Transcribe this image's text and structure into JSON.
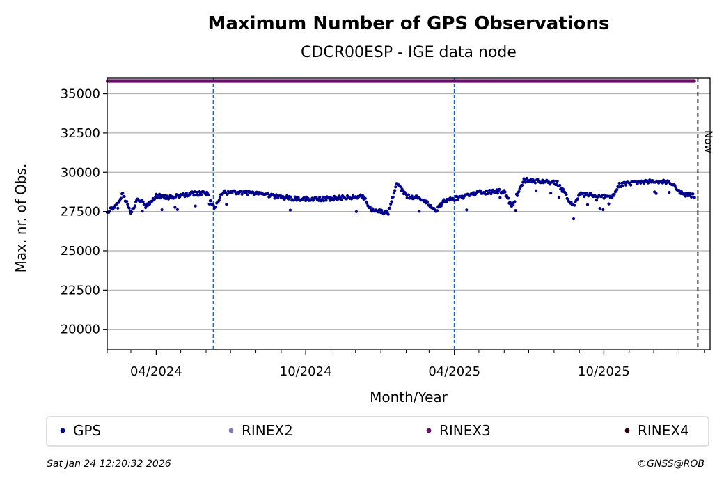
{
  "chart_data": {
    "type": "scatter",
    "title": "Maximum Number of GPS Observations",
    "subtitle": "CDCR00ESP - IGE data node",
    "xlabel": "Month/Year",
    "ylabel": "Max. nr. of Obs.",
    "x_tick_labels": [
      "04/2024",
      "10/2024",
      "04/2025",
      "10/2025"
    ],
    "y_ticks": [
      20000,
      22500,
      25000,
      27500,
      30000,
      32500,
      35000
    ],
    "ylim": [
      18700,
      36000
    ],
    "xlim": [
      "2024-02-01",
      "2026-02-08"
    ],
    "grid": "horizontal",
    "legend_position": "bottom",
    "colors": {
      "GPS": "#00008b",
      "RINEX2": "#7b7bb8",
      "RINEX3": "#6a0a6a",
      "RINEX4": "#2a0010",
      "vline": "#1f5fbf",
      "now_line": "#000000"
    },
    "series": [
      {
        "name": "GPS",
        "trend": [
          [
            "2024-02-01",
            27500
          ],
          [
            "2024-02-10",
            27800
          ],
          [
            "2024-02-20",
            28600
          ],
          [
            "2024-03-01",
            27500
          ],
          [
            "2024-03-10",
            28300
          ],
          [
            "2024-03-20",
            27800
          ],
          [
            "2024-04-01",
            28500
          ],
          [
            "2024-04-20",
            28400
          ],
          [
            "2024-05-10",
            28600
          ],
          [
            "2024-06-01",
            28700
          ],
          [
            "2024-06-12",
            27700
          ],
          [
            "2024-06-20",
            28700
          ],
          [
            "2024-07-20",
            28700
          ],
          [
            "2024-08-20",
            28500
          ],
          [
            "2024-09-20",
            28300
          ],
          [
            "2024-10-20",
            28300
          ],
          [
            "2024-11-20",
            28400
          ],
          [
            "2024-12-10",
            28500
          ],
          [
            "2024-12-20",
            27600
          ],
          [
            "2025-01-10",
            27400
          ],
          [
            "2025-01-20",
            29300
          ],
          [
            "2025-02-01",
            28500
          ],
          [
            "2025-02-20",
            28300
          ],
          [
            "2025-03-10",
            27600
          ],
          [
            "2025-03-20",
            28200
          ],
          [
            "2025-04-10",
            28400
          ],
          [
            "2025-05-01",
            28700
          ],
          [
            "2025-06-01",
            28800
          ],
          [
            "2025-06-10",
            27800
          ],
          [
            "2025-06-25",
            29500
          ],
          [
            "2025-07-20",
            29400
          ],
          [
            "2025-08-05",
            29300
          ],
          [
            "2025-08-15",
            28600
          ],
          [
            "2025-08-25",
            27800
          ],
          [
            "2025-09-01",
            28600
          ],
          [
            "2025-09-20",
            28500
          ],
          [
            "2025-10-10",
            28400
          ],
          [
            "2025-10-20",
            29200
          ],
          [
            "2025-11-20",
            29400
          ],
          [
            "2025-12-20",
            29400
          ],
          [
            "2026-01-05",
            28600
          ],
          [
            "2026-01-20",
            28500
          ]
        ]
      },
      {
        "name": "RINEX2",
        "trend": []
      },
      {
        "name": "RINEX3",
        "trend": [
          [
            "2024-02-01",
            35800
          ],
          [
            "2026-01-20",
            35800
          ]
        ]
      },
      {
        "name": "RINEX4",
        "trend": []
      }
    ],
    "vertical_lines": [
      "2024-06-10",
      "2025-04-01"
    ],
    "now_line": {
      "date": "2026-01-24",
      "label": "Now"
    }
  },
  "footer": {
    "timestamp": "Sat Jan 24 12:20:32 2026",
    "copyright": "©GNSS@ROB"
  }
}
